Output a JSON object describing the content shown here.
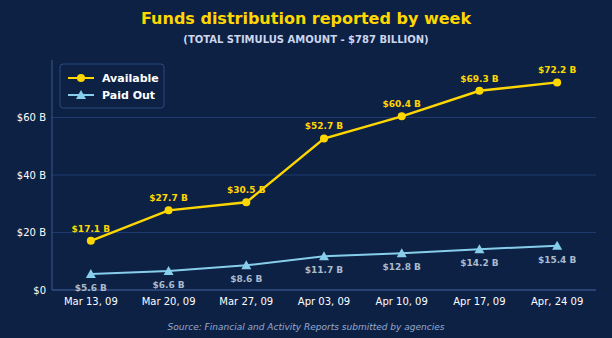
{
  "chart_data": {
    "type": "line",
    "title": "Funds distribution reported by week",
    "subtitle": "(TOTAL STIMULUS AMOUNT - $787 BILLION)",
    "source": "Source: Financial and Activity Reports submitted by agencies",
    "categories": [
      "Mar 13, 09",
      "Mar 20, 09",
      "Mar 27, 09",
      "Apr 03, 09",
      "Apr 10, 09",
      "Apr 17, 09",
      "Apr, 24 09"
    ],
    "series": [
      {
        "name": "Available",
        "color": "#ffd700",
        "marker": "circle",
        "values": [
          17.1,
          27.7,
          30.5,
          52.7,
          60.4,
          69.3,
          72.2
        ],
        "value_labels": [
          "$17.1 B",
          "$27.7 B",
          "$30.5 B",
          "$52.7 B",
          "$60.4 B",
          "$69.3 B",
          "$72.2 B"
        ]
      },
      {
        "name": "Paid Out",
        "color": "#87ceeb",
        "marker": "triangle",
        "values": [
          5.6,
          6.6,
          8.6,
          11.7,
          12.8,
          14.2,
          15.4
        ],
        "value_labels": [
          "$5.6 B",
          "$6.6 B",
          "$8.6 B",
          "$11.7 B",
          "$12.8 B",
          "$14.2 B",
          "$15.4 B"
        ]
      }
    ],
    "ylim": [
      0,
      80
    ],
    "yticks": [
      {
        "value": 0,
        "label": "$0"
      },
      {
        "value": 20,
        "label": "$20 B"
      },
      {
        "value": 40,
        "label": "$40 B"
      },
      {
        "value": 60,
        "label": "$60 B"
      }
    ],
    "grid": true,
    "legend": "upper left",
    "data_labels": true
  }
}
